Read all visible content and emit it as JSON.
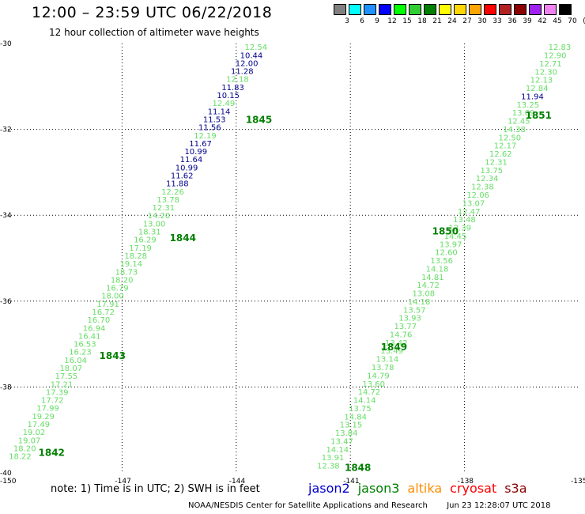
{
  "header": {
    "title": "12:00 – 23:59 UTC 06/22/2018",
    "subtitle": "12 hour collection of altimeter wave heights"
  },
  "color_scale": {
    "bins": [
      {
        "label": "3",
        "color": "#808080"
      },
      {
        "label": "6",
        "color": "#00ffff"
      },
      {
        "label": "9",
        "color": "#1e90ff"
      },
      {
        "label": "12",
        "color": "#0000ff"
      },
      {
        "label": "15",
        "color": "#00ff00"
      },
      {
        "label": "18",
        "color": "#32cd32"
      },
      {
        "label": "21",
        "color": "#008000"
      },
      {
        "label": "24",
        "color": "#ffff00"
      },
      {
        "label": "27",
        "color": "#ffd700"
      },
      {
        "label": "30",
        "color": "#ffa500"
      },
      {
        "label": "33",
        "color": "#ff0000"
      },
      {
        "label": "36",
        "color": "#b22222"
      },
      {
        "label": "39",
        "color": "#8b0000"
      },
      {
        "label": "42",
        "color": "#a020f0"
      },
      {
        "label": "45",
        "color": "#ee82ee"
      },
      {
        "label": "70",
        "color": "#000000"
      }
    ],
    "unit": "(ft)"
  },
  "axes": {
    "lon_ticks": [
      "-150",
      "-147",
      "-144",
      "-141",
      "-138",
      "-135"
    ],
    "lat_ticks": [
      "-30",
      "-32",
      "-34",
      "-36",
      "-38",
      "-40"
    ],
    "lon_range": [
      -150,
      -135
    ],
    "lat_range": [
      -40,
      -30
    ]
  },
  "colors": {
    "blue": "#00008b",
    "light": "#66dd66",
    "dark": "#008000"
  },
  "passes": [
    {
      "label": "1842",
      "label_at": {
        "lon": -149.2,
        "lat": -39.6
      },
      "start": {
        "lon": -149.68,
        "lat": -39.68
      },
      "end": {
        "lon": -143.48,
        "lat": -30.15
      },
      "values": [
        {
          "v": "18.22",
          "c": "light"
        },
        {
          "v": "18.20",
          "c": "light"
        },
        {
          "v": "19.07",
          "c": "light"
        },
        {
          "v": "19.02",
          "c": "light"
        },
        {
          "v": "17.49",
          "c": "light"
        },
        {
          "v": "19.29",
          "c": "light"
        },
        {
          "v": "17.99",
          "c": "light"
        },
        {
          "v": "17.72",
          "c": "light"
        },
        {
          "v": "17.39",
          "c": "light"
        },
        {
          "v": "17.21",
          "c": "light"
        },
        {
          "v": "17.55",
          "c": "light"
        },
        {
          "v": "18.07",
          "c": "light"
        },
        {
          "v": "16.04",
          "c": "light"
        },
        {
          "v": "16.23",
          "c": "light"
        },
        {
          "v": "16.53",
          "c": "light"
        },
        {
          "v": "16.41",
          "c": "light"
        },
        {
          "v": "16.94",
          "c": "light"
        },
        {
          "v": "16.70",
          "c": "light"
        },
        {
          "v": "16.72",
          "c": "light"
        },
        {
          "v": "17.91",
          "c": "light"
        },
        {
          "v": "18.00",
          "c": "light"
        },
        {
          "v": "16.79",
          "c": "light"
        },
        {
          "v": "18.20",
          "c": "light"
        },
        {
          "v": "18.73",
          "c": "light"
        },
        {
          "v": "19.14",
          "c": "light"
        },
        {
          "v": "18.28",
          "c": "light"
        },
        {
          "v": "17.19",
          "c": "light"
        },
        {
          "v": "16.29",
          "c": "light"
        },
        {
          "v": "18.31",
          "c": "light"
        },
        {
          "v": "13.00",
          "c": "light"
        },
        {
          "v": "14.20",
          "c": "light"
        },
        {
          "v": "12.31",
          "c": "light"
        },
        {
          "v": "13.78",
          "c": "light"
        },
        {
          "v": "12.26",
          "c": "light"
        },
        {
          "v": "11.88",
          "c": "blue"
        },
        {
          "v": "11.62",
          "c": "blue"
        },
        {
          "v": "10.99",
          "c": "blue"
        },
        {
          "v": "11.64",
          "c": "blue"
        },
        {
          "v": "10.99",
          "c": "blue"
        },
        {
          "v": "11.67",
          "c": "blue"
        },
        {
          "v": "12.19",
          "c": "light"
        },
        {
          "v": "11.56",
          "c": "blue"
        },
        {
          "v": "11.53",
          "c": "blue"
        },
        {
          "v": "11.14",
          "c": "blue"
        },
        {
          "v": "12.49",
          "c": "light"
        },
        {
          "v": "10.15",
          "c": "blue"
        },
        {
          "v": "11.83",
          "c": "blue"
        },
        {
          "v": "12.18",
          "c": "light"
        },
        {
          "v": "11.28",
          "c": "blue"
        },
        {
          "v": "12.00",
          "c": "blue"
        },
        {
          "v": "10.44",
          "c": "blue"
        },
        {
          "v": "12.54",
          "c": "light"
        }
      ]
    },
    {
      "label": "1843",
      "label_at": {
        "lon": -147.6,
        "lat": -37.35
      },
      "values": []
    },
    {
      "label": "1844",
      "label_at": {
        "lon": -145.75,
        "lat": -34.6
      },
      "values": []
    },
    {
      "label": "1845",
      "label_at": {
        "lon": -143.75,
        "lat": -31.85
      },
      "values": []
    },
    {
      "label": "1848",
      "label_at": {
        "lon": -141.15,
        "lat": -39.95
      },
      "start": {
        "lon": -141.58,
        "lat": -39.9
      },
      "end": {
        "lon": -135.5,
        "lat": -30.15
      },
      "values": [
        {
          "v": "12.38",
          "c": "light"
        },
        {
          "v": "13.91",
          "c": "light"
        },
        {
          "v": "14.14",
          "c": "light"
        },
        {
          "v": "13.47",
          "c": "light"
        },
        {
          "v": "13.84",
          "c": "light"
        },
        {
          "v": "13.15",
          "c": "light"
        },
        {
          "v": "14.84",
          "c": "light"
        },
        {
          "v": "13.75",
          "c": "light"
        },
        {
          "v": "14.14",
          "c": "light"
        },
        {
          "v": "14.72",
          "c": "light"
        },
        {
          "v": "13.60",
          "c": "light"
        },
        {
          "v": "14.79",
          "c": "light"
        },
        {
          "v": "13.78",
          "c": "light"
        },
        {
          "v": "13.14",
          "c": "light"
        },
        {
          "v": "13.49",
          "c": "light"
        },
        {
          "v": "13.42",
          "c": "light"
        },
        {
          "v": "14.76",
          "c": "light"
        },
        {
          "v": "13.77",
          "c": "light"
        },
        {
          "v": "13.93",
          "c": "light"
        },
        {
          "v": "13.57",
          "c": "light"
        },
        {
          "v": "14.18",
          "c": "light"
        },
        {
          "v": "13.08",
          "c": "light"
        },
        {
          "v": "14.72",
          "c": "light"
        },
        {
          "v": "14.81",
          "c": "light"
        },
        {
          "v": "14.18",
          "c": "light"
        },
        {
          "v": "13.56",
          "c": "light"
        },
        {
          "v": "12.60",
          "c": "light"
        },
        {
          "v": "13.97",
          "c": "light"
        },
        {
          "v": "14.45",
          "c": "light"
        },
        {
          "v": "12.39",
          "c": "light"
        },
        {
          "v": "13.48",
          "c": "light"
        },
        {
          "v": "12.47",
          "c": "light"
        },
        {
          "v": "13.07",
          "c": "light"
        },
        {
          "v": "12.06",
          "c": "light"
        },
        {
          "v": "12.38",
          "c": "light"
        },
        {
          "v": "12.34",
          "c": "light"
        },
        {
          "v": "13.75",
          "c": "light"
        },
        {
          "v": "12.31",
          "c": "light"
        },
        {
          "v": "12.62",
          "c": "light"
        },
        {
          "v": "12.17",
          "c": "light"
        },
        {
          "v": "12.50",
          "c": "light"
        },
        {
          "v": "14.38",
          "c": "light"
        },
        {
          "v": "12.45",
          "c": "light"
        },
        {
          "v": "13.69",
          "c": "light"
        },
        {
          "v": "13.25",
          "c": "light"
        },
        {
          "v": "11.94",
          "c": "blue"
        },
        {
          "v": "12.84",
          "c": "light"
        },
        {
          "v": "12.13",
          "c": "light"
        },
        {
          "v": "12.30",
          "c": "light"
        },
        {
          "v": "12.71",
          "c": "light"
        },
        {
          "v": "12.90",
          "c": "light"
        },
        {
          "v": "12.83",
          "c": "light"
        }
      ]
    },
    {
      "label": "1849",
      "label_at": {
        "lon": -140.2,
        "lat": -37.15
      },
      "values": []
    },
    {
      "label": "1850",
      "label_at": {
        "lon": -138.85,
        "lat": -34.45
      },
      "values": []
    },
    {
      "label": "1851",
      "label_at": {
        "lon": -136.4,
        "lat": -31.75
      },
      "values": []
    }
  ],
  "footer": {
    "note": "note: 1) Time is in UTC; 2) SWH is in feet",
    "legend": [
      {
        "name": "jason2",
        "color": "#0000cd"
      },
      {
        "name": "jason3",
        "color": "#008000"
      },
      {
        "name": "altika",
        "color": "#ff8c00"
      },
      {
        "name": "cryosat",
        "color": "#ff0000"
      },
      {
        "name": "s3a",
        "color": "#8b0000"
      }
    ],
    "credit": "NOAA/NESDIS Center for Satellite Applications and Research",
    "timestamp": "Jun 23 12:28:07 UTC 2018"
  }
}
